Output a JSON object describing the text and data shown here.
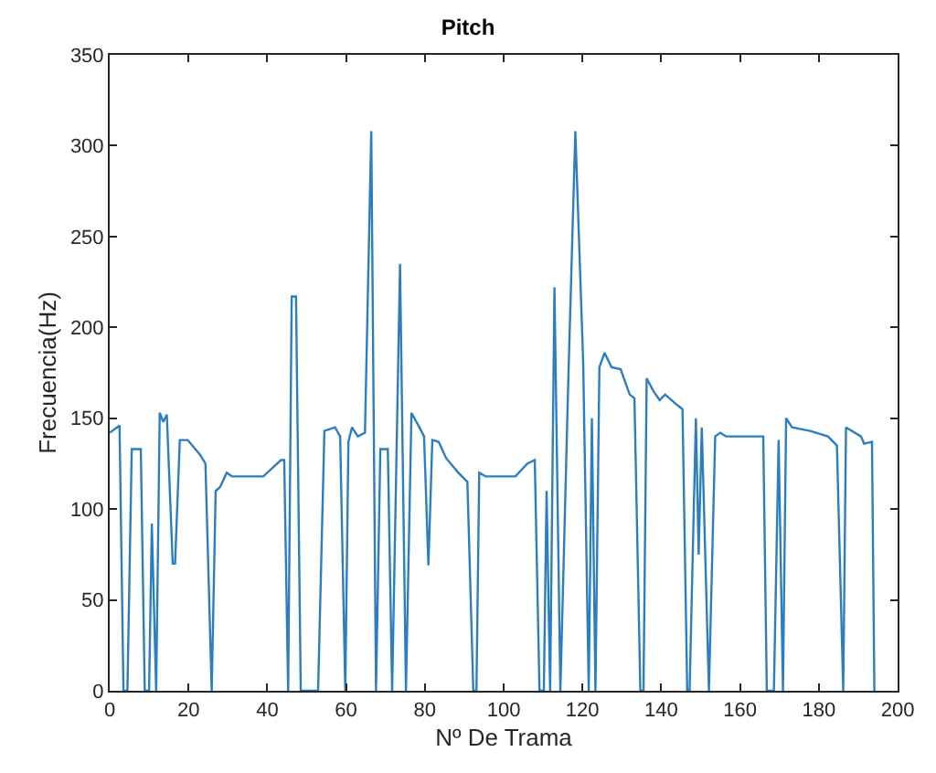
{
  "chart_data": {
    "type": "line",
    "title": "Pitch",
    "xlabel": "Nº De Trama",
    "ylabel": "Frecuencia(Hz)",
    "xlim": [
      0,
      200
    ],
    "xticks": [
      0,
      20,
      40,
      60,
      80,
      100,
      120,
      140,
      160,
      180,
      200
    ],
    "ylim": [
      0,
      350
    ],
    "yticks": [
      0,
      50,
      100,
      150,
      200,
      250,
      300,
      350
    ],
    "series": [
      {
        "color": "#2b7fc0",
        "x": [
          0,
          2.5,
          3.5,
          4.5,
          5.6,
          7.9,
          8.9,
          10,
          10.7,
          11.8,
          12.7,
          13.6,
          14.5,
          16,
          16.6,
          17.8,
          19.8,
          22.9,
          24.3,
          25.9,
          26.9,
          28,
          29.7,
          31,
          39,
          41,
          43.5,
          44.3,
          45.3,
          46.2,
          47.3,
          48.5,
          52.9,
          54.5,
          57.2,
          58.5,
          59.8,
          60.6,
          61.5,
          63,
          64.8,
          66.4,
          67.6,
          68.7,
          70.6,
          71.7,
          73.7,
          75.2,
          76.6,
          78.6,
          79.8,
          80.9,
          81.9,
          83.5,
          85.4,
          88.5,
          90.8,
          92.3,
          93.1,
          93.8,
          95.4,
          103,
          106,
          107.9,
          109.1,
          110.2,
          110.9,
          111.8,
          112.9,
          114.4,
          116.4,
          118.2,
          120.2,
          121.6,
          122.4,
          123.3,
          124.3,
          125.6,
          127.4,
          129.7,
          132,
          133.2,
          134.7,
          135.5,
          136.3,
          138,
          139.6,
          141,
          144.2,
          145.4,
          146.6,
          147.2,
          148.8,
          149.5,
          150.3,
          152.1,
          153.7,
          155,
          156.4,
          165.9,
          166.8,
          168.6,
          169.8,
          170.9,
          171.7,
          173.2,
          177.8,
          182.3,
          184.6,
          186.2,
          186.9,
          190.7,
          191.5,
          193.5,
          194.1
        ],
        "values": [
          142,
          146,
          0,
          0,
          133,
          133,
          0,
          0,
          92,
          0,
          153,
          148,
          152,
          70,
          70,
          138,
          138,
          130,
          125,
          0,
          110,
          112,
          120,
          118,
          118,
          122,
          127,
          127,
          0,
          217,
          217,
          0,
          0,
          143,
          145,
          140,
          0,
          137,
          145,
          140,
          142,
          308,
          0,
          133,
          133,
          0,
          235,
          0,
          153,
          145,
          140,
          69,
          138,
          137,
          128,
          120,
          115,
          0,
          0,
          120,
          118,
          118,
          125,
          127,
          0,
          0,
          110,
          0,
          222,
          0,
          170,
          308,
          180,
          0,
          150,
          0,
          178,
          186,
          178,
          177,
          163,
          161,
          0,
          0,
          172,
          165,
          160,
          163,
          157,
          155,
          0,
          0,
          150,
          75,
          145,
          0,
          140,
          142,
          140,
          140,
          0,
          0,
          138,
          0,
          150,
          145,
          143,
          140,
          135,
          0,
          145,
          140,
          136,
          137,
          0
        ]
      }
    ]
  }
}
